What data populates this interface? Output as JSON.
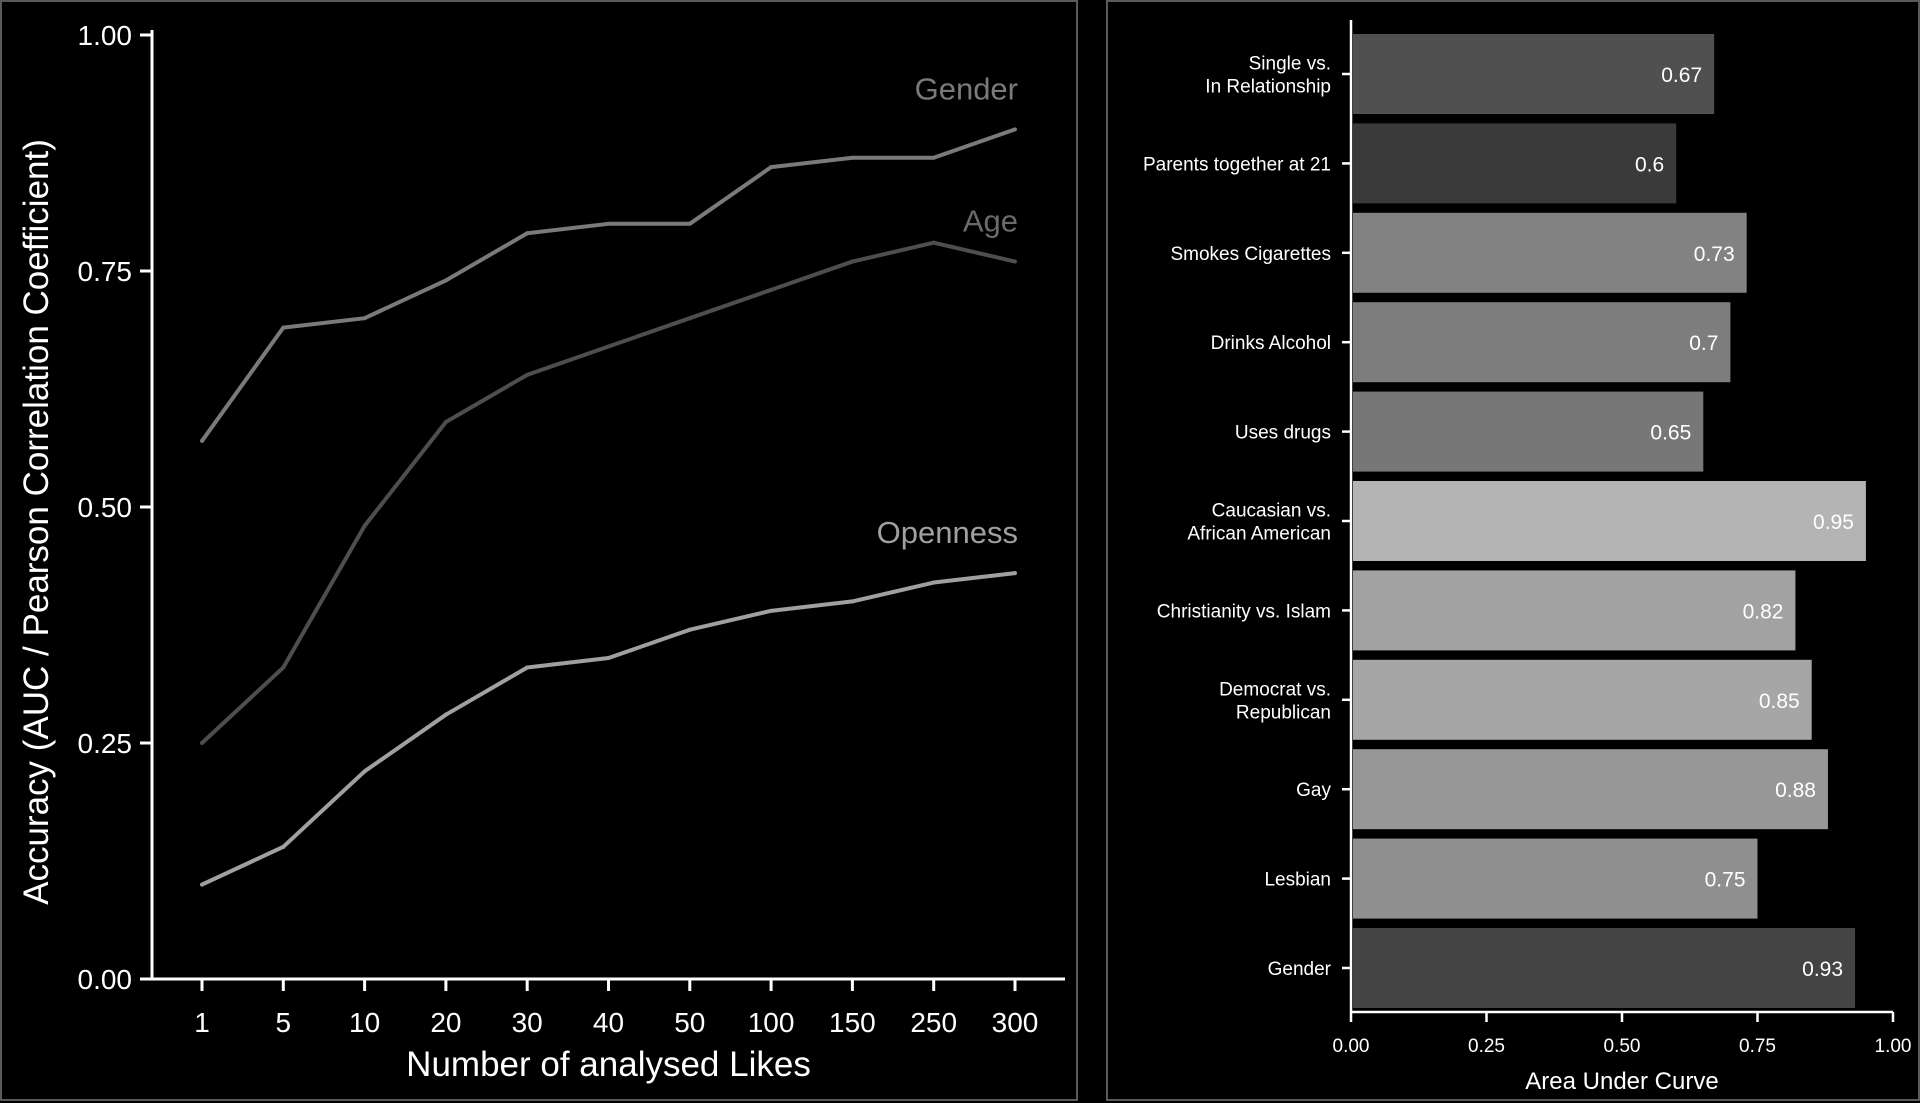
{
  "chart_data": [
    {
      "type": "line",
      "xlabel": "Number of analysed Likes",
      "ylabel": "Accuracy (AUC / Pearson Correlation Coefficient)",
      "x": [
        "1",
        "5",
        "10",
        "20",
        "30",
        "40",
        "50",
        "100",
        "150",
        "250",
        "300"
      ],
      "ylim": [
        0,
        1
      ],
      "yticks": [
        "0.00",
        "0.25",
        "0.50",
        "0.75",
        "1.00"
      ],
      "grid": false,
      "series": [
        {
          "name": "Gender",
          "color": "#7a7a7a",
          "values": [
            0.57,
            0.69,
            0.7,
            0.74,
            0.79,
            0.8,
            0.8,
            0.86,
            0.87,
            0.87,
            0.9
          ]
        },
        {
          "name": "Age",
          "color": "#4e4e4e",
          "values": [
            0.25,
            0.33,
            0.48,
            0.59,
            0.64,
            0.67,
            0.7,
            0.73,
            0.76,
            0.78,
            0.76
          ]
        },
        {
          "name": "Openness",
          "color": "#a0a0a0",
          "values": [
            0.1,
            0.14,
            0.22,
            0.28,
            0.33,
            0.34,
            0.37,
            0.39,
            0.4,
            0.42,
            0.43
          ]
        }
      ]
    },
    {
      "type": "bar",
      "orientation": "horizontal",
      "xlabel": "Area Under Curve",
      "xlim": [
        0,
        1
      ],
      "xticks": [
        "0.00",
        "0.25",
        "0.50",
        "0.75",
        "1.00"
      ],
      "categories": [
        [
          "Single vs.",
          "In Relationship"
        ],
        [
          "Parents together at 21"
        ],
        [
          "Smokes Cigarettes"
        ],
        [
          "Drinks Alcohol"
        ],
        [
          "Uses drugs"
        ],
        [
          "Caucasian vs.",
          "African American"
        ],
        [
          "Christianity vs. Islam"
        ],
        [
          "Democrat vs.",
          "Republican"
        ],
        [
          "Gay"
        ],
        [
          "Lesbian"
        ],
        [
          "Gender"
        ]
      ],
      "values": [
        0.67,
        0.6,
        0.73,
        0.7,
        0.65,
        0.95,
        0.82,
        0.85,
        0.88,
        0.75,
        0.93
      ],
      "value_labels": [
        "0.67",
        "0.6",
        "0.73",
        "0.7",
        "0.65",
        "0.95",
        "0.82",
        "0.85",
        "0.88",
        "0.75",
        "0.93"
      ],
      "colors": [
        "#505050",
        "#3a3a3a",
        "#828282",
        "#7d7d7d",
        "#777777",
        "#b4b4b4",
        "#a2a2a2",
        "#a6a6a6",
        "#979797",
        "#8f8f8f",
        "#444444"
      ]
    }
  ]
}
